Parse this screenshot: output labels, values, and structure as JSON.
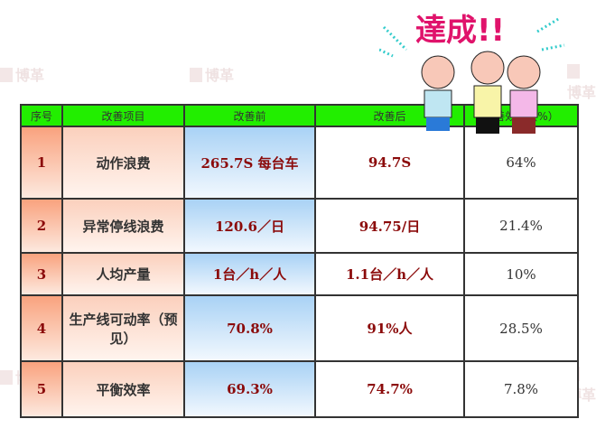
{
  "watermark": "博革",
  "banner": {
    "text": "達成!!",
    "color": "#e0136b"
  },
  "table": {
    "headers": [
      "序号",
      "改善项目",
      "改善前",
      "改善后",
      "改善效果（%）"
    ],
    "rows": [
      {
        "no": "1",
        "item": "动作浪费",
        "before": "265.7S 每台车",
        "after": "94.7S",
        "effect": "64%"
      },
      {
        "no": "2",
        "item": "异常停线浪费",
        "before": "120.6／日",
        "after": "94.75/日",
        "effect": "21.4%"
      },
      {
        "no": "3",
        "item": "人均产量",
        "before": "1台／h／人",
        "after": "1.1台／h／人",
        "effect": "10%"
      },
      {
        "no": "4",
        "item": "生产线可动率（预见）",
        "before": "70.8%",
        "after": "91%人",
        "effect": "28.5%"
      },
      {
        "no": "5",
        "item": "平衡效率",
        "before": "69.3%",
        "after": "74.7%",
        "effect": "7.8%"
      }
    ]
  },
  "colors": {
    "header": "#22ee00",
    "text_red": "#8b0a0a"
  }
}
